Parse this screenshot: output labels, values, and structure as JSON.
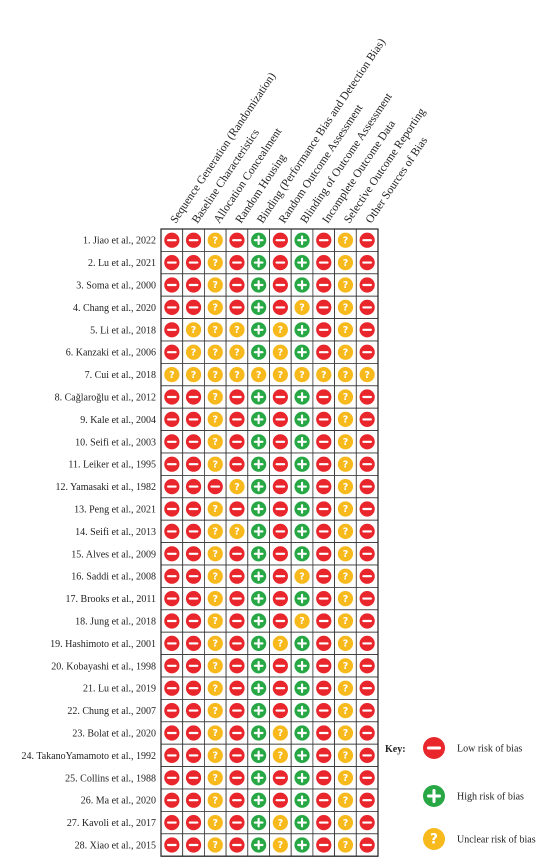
{
  "chart_data": {
    "type": "table",
    "columns": [
      "Sequence Generation (Randomization)",
      "Baseline Characteristics",
      "Allocation Concealment",
      "Random Housing",
      "Binding (Performance Bias and Detection Bias)",
      "Random Outcome Assessment",
      "Blinding of Outcome Assessment",
      "Incomplete Outcome Data",
      "Selective Outcome Reporting",
      "Other Sources of Bias"
    ],
    "studies": [
      "1. Jiao et al., 2022",
      "2. Lu et al., 2021",
      "3. Soma et al., 2000",
      "4. Chang et al., 2020",
      "5. Li et al., 2018",
      "6. Kanzaki et al., 2006",
      "7. Cui et al., 2018",
      "8. Cağlaroğlu et al., 2012",
      "9. Kale et al., 2004",
      "10. Seifi et al., 2003",
      "11. Leiker et al., 1995",
      "12. Yamasaki et al., 1982",
      "13. Peng et al., 2021",
      "14. Seifi et al., 2013",
      "15. Alves et al., 2009",
      "16. Saddi et al., 2008",
      "17. Brooks et al., 2011",
      "18. Jung et al., 2018",
      "19. Hashimoto et al., 2001",
      "20. Kobayashi et al., 1998",
      "21. Lu et al., 2019",
      "22. Chung et al., 2007",
      "23. Bolat et al., 2020",
      "24. TakanoYamamoto et al., 1992",
      "25. Collins et al., 1988",
      "26. Ma et al., 2020",
      "27. Kavoli et al., 2017",
      "28. Xiao et al., 2015"
    ],
    "ratings": [
      [
        "L",
        "L",
        "U",
        "L",
        "H",
        "L",
        "H",
        "L",
        "U",
        "L"
      ],
      [
        "L",
        "L",
        "U",
        "L",
        "H",
        "L",
        "H",
        "L",
        "U",
        "L"
      ],
      [
        "L",
        "L",
        "U",
        "L",
        "H",
        "L",
        "H",
        "L",
        "U",
        "L"
      ],
      [
        "L",
        "L",
        "U",
        "L",
        "H",
        "L",
        "U",
        "L",
        "U",
        "L"
      ],
      [
        "L",
        "U",
        "U",
        "U",
        "H",
        "U",
        "H",
        "L",
        "U",
        "L"
      ],
      [
        "L",
        "U",
        "U",
        "U",
        "H",
        "U",
        "H",
        "L",
        "U",
        "L"
      ],
      [
        "U",
        "U",
        "U",
        "U",
        "U",
        "U",
        "U",
        "U",
        "U",
        "U"
      ],
      [
        "L",
        "L",
        "U",
        "L",
        "H",
        "L",
        "H",
        "L",
        "U",
        "L"
      ],
      [
        "L",
        "L",
        "U",
        "L",
        "H",
        "L",
        "H",
        "L",
        "U",
        "L"
      ],
      [
        "L",
        "L",
        "U",
        "L",
        "H",
        "L",
        "H",
        "L",
        "U",
        "L"
      ],
      [
        "L",
        "L",
        "U",
        "L",
        "H",
        "L",
        "H",
        "L",
        "U",
        "L"
      ],
      [
        "L",
        "L",
        "L",
        "U",
        "H",
        "L",
        "H",
        "L",
        "U",
        "L"
      ],
      [
        "L",
        "L",
        "U",
        "L",
        "H",
        "L",
        "H",
        "L",
        "U",
        "L"
      ],
      [
        "L",
        "L",
        "U",
        "U",
        "H",
        "L",
        "H",
        "L",
        "U",
        "L"
      ],
      [
        "L",
        "L",
        "U",
        "L",
        "H",
        "L",
        "H",
        "L",
        "U",
        "L"
      ],
      [
        "L",
        "L",
        "U",
        "L",
        "H",
        "L",
        "U",
        "L",
        "U",
        "L"
      ],
      [
        "L",
        "L",
        "U",
        "L",
        "H",
        "L",
        "H",
        "L",
        "U",
        "L"
      ],
      [
        "L",
        "L",
        "U",
        "L",
        "H",
        "L",
        "U",
        "L",
        "U",
        "L"
      ],
      [
        "L",
        "L",
        "U",
        "L",
        "H",
        "U",
        "H",
        "L",
        "U",
        "L"
      ],
      [
        "L",
        "L",
        "U",
        "L",
        "H",
        "L",
        "H",
        "L",
        "U",
        "L"
      ],
      [
        "L",
        "L",
        "U",
        "L",
        "H",
        "L",
        "H",
        "L",
        "U",
        "L"
      ],
      [
        "L",
        "L",
        "U",
        "L",
        "H",
        "L",
        "H",
        "L",
        "U",
        "L"
      ],
      [
        "L",
        "L",
        "U",
        "L",
        "H",
        "U",
        "H",
        "L",
        "U",
        "L"
      ],
      [
        "L",
        "L",
        "U",
        "L",
        "H",
        "U",
        "H",
        "L",
        "U",
        "L"
      ],
      [
        "L",
        "L",
        "U",
        "L",
        "H",
        "L",
        "H",
        "L",
        "U",
        "L"
      ],
      [
        "L",
        "L",
        "U",
        "L",
        "H",
        "L",
        "H",
        "L",
        "U",
        "L"
      ],
      [
        "L",
        "L",
        "U",
        "L",
        "H",
        "U",
        "H",
        "L",
        "U",
        "L"
      ],
      [
        "L",
        "L",
        "U",
        "L",
        "H",
        "U",
        "H",
        "L",
        "U",
        "L"
      ]
    ],
    "key": {
      "title": "Key:",
      "items": [
        {
          "code": "L",
          "label": "Low risk of bias"
        },
        {
          "code": "H",
          "label": "High risk of bias"
        },
        {
          "code": "U",
          "label": "Unclear risk of bias"
        }
      ]
    },
    "colors": {
      "L": "#e8262b",
      "H": "#27a844",
      "U": "#f7b91c",
      "grid": "#333333"
    },
    "symbols": {
      "L": "minus-icon",
      "H": "plus-icon",
      "U": "question-icon"
    }
  }
}
